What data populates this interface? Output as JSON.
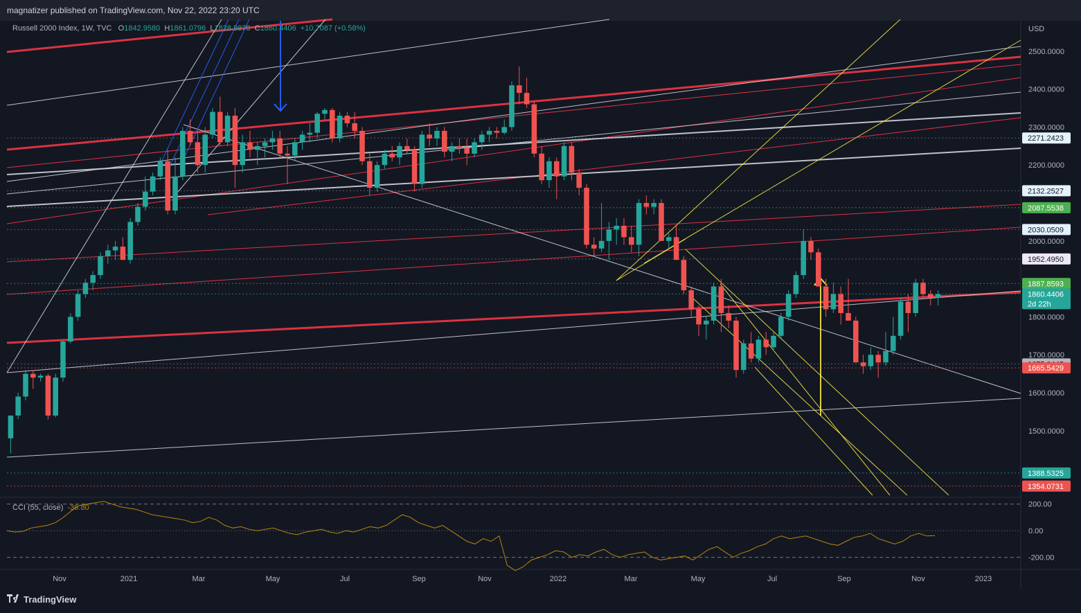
{
  "header": {
    "published": "magnatizer published on TradingView.com, Nov 22, 2022 23:20 UTC"
  },
  "legend": {
    "symbol": "Russell 2000 Index, 1W, TVC",
    "open_label": "O",
    "open": "1842.9580",
    "high_label": "H",
    "high": "1861.0796",
    "low_label": "L",
    "low": "1828.9878",
    "close_label": "C",
    "close": "1860.4406",
    "change": "+10.7087 (+0.58%)"
  },
  "cci_legend": {
    "name": "CCI (55, close)",
    "value": "-36.80"
  },
  "footer": {
    "brand": "TradingView"
  },
  "colors": {
    "background": "#131722",
    "up": "#26a69a",
    "down": "#ef5350",
    "red_line": "#f23645",
    "white_line": "#d1d4dc",
    "yellow_line": "#f5e642",
    "blue_line": "#2962ff",
    "cci": "#b8860b"
  },
  "chart_data": {
    "type": "candlestick",
    "title": "Russell 2000 Index, 1W, TVC",
    "currency": "USD",
    "y_ticks": [
      1500,
      1600,
      1700,
      1800,
      2000,
      2200,
      2300,
      2400,
      2500
    ],
    "y_tick_labels": [
      "1500.0000",
      "1600.0000",
      "1700.0000",
      "1800.0000",
      "2000.0000",
      "2200.0000",
      "2300.0000",
      "2400.0000",
      "2500.0000"
    ],
    "x_tick_labels": [
      "Nov",
      "2021",
      "Mar",
      "May",
      "Jul",
      "Sep",
      "Nov",
      "2022",
      "Mar",
      "May",
      "Jul",
      "Sep",
      "Nov",
      "2023"
    ],
    "price_labels": [
      {
        "value": 2271.2423,
        "text": "2271.2423",
        "style": "light"
      },
      {
        "value": 2132.2527,
        "text": "2132.2527",
        "style": "light"
      },
      {
        "value": 2087.5538,
        "text": "2087.5538",
        "style": "green"
      },
      {
        "value": 2030.0509,
        "text": "2030.0509",
        "style": "light"
      },
      {
        "value": 1952.495,
        "text": "1952.4950",
        "style": "lavender"
      },
      {
        "value": 1887.8593,
        "text": "1887.8593",
        "style": "green"
      },
      {
        "value": 1860.4406,
        "text": "1860.4406",
        "style": "teal",
        "extra": "2d 22h"
      },
      {
        "value": 1675.9445,
        "text": "1675.9445",
        "style": "gray"
      },
      {
        "value": 1665.5429,
        "text": "1665.5429",
        "style": "red"
      },
      {
        "value": 1388.5325,
        "text": "1388.5325",
        "style": "teal"
      },
      {
        "value": 1354.0731,
        "text": "1354.0731",
        "style": "red"
      }
    ],
    "candles": [
      [
        1480,
        1540,
        1440,
        1540
      ],
      [
        1540,
        1600,
        1530,
        1590
      ],
      [
        1590,
        1660,
        1580,
        1650
      ],
      [
        1650,
        1660,
        1610,
        1640
      ],
      [
        1640,
        1650,
        1630,
        1645
      ],
      [
        1645,
        1650,
        1530,
        1540
      ],
      [
        1540,
        1650,
        1535,
        1640
      ],
      [
        1640,
        1740,
        1630,
        1735
      ],
      [
        1735,
        1810,
        1730,
        1800
      ],
      [
        1800,
        1870,
        1790,
        1860
      ],
      [
        1860,
        1900,
        1850,
        1890
      ],
      [
        1890,
        1920,
        1870,
        1910
      ],
      [
        1910,
        1970,
        1900,
        1960
      ],
      [
        1960,
        1990,
        1940,
        1975
      ],
      [
        1975,
        2000,
        1950,
        1985
      ],
      [
        1985,
        2010,
        1960,
        1950
      ],
      [
        1950,
        2060,
        1940,
        2050
      ],
      [
        2050,
        2100,
        2040,
        2090
      ],
      [
        2090,
        2170,
        2080,
        2130
      ],
      [
        2130,
        2180,
        2120,
        2170
      ],
      [
        2170,
        2220,
        2160,
        2210
      ],
      [
        2210,
        2240,
        2070,
        2080
      ],
      [
        2080,
        2220,
        2070,
        2170
      ],
      [
        2170,
        2300,
        2160,
        2290
      ],
      [
        2290,
        2320,
        2250,
        2260
      ],
      [
        2260,
        2290,
        2180,
        2200
      ],
      [
        2200,
        2300,
        2180,
        2280
      ],
      [
        2280,
        2350,
        2270,
        2340
      ],
      [
        2340,
        2380,
        2250,
        2260
      ],
      [
        2260,
        2340,
        2250,
        2330
      ],
      [
        2330,
        2350,
        2140,
        2200
      ],
      [
        2200,
        2280,
        2180,
        2260
      ],
      [
        2260,
        2290,
        2220,
        2240
      ],
      [
        2240,
        2260,
        2200,
        2250
      ],
      [
        2250,
        2270,
        2220,
        2260
      ],
      [
        2260,
        2290,
        2240,
        2270
      ],
      [
        2270,
        2290,
        2220,
        2230
      ],
      [
        2230,
        2250,
        2150,
        2225
      ],
      [
        2225,
        2270,
        2210,
        2260
      ],
      [
        2260,
        2290,
        2240,
        2280
      ],
      [
        2280,
        2310,
        2260,
        2285
      ],
      [
        2285,
        2340,
        2270,
        2335
      ],
      [
        2335,
        2350,
        2320,
        2345
      ],
      [
        2345,
        2350,
        2260,
        2270
      ],
      [
        2270,
        2340,
        2260,
        2330
      ],
      [
        2330,
        2340,
        2300,
        2310
      ],
      [
        2310,
        2340,
        2270,
        2290
      ],
      [
        2290,
        2300,
        2200,
        2210
      ],
      [
        2210,
        2230,
        2120,
        2140
      ],
      [
        2140,
        2210,
        2130,
        2200
      ],
      [
        2200,
        2240,
        2190,
        2230
      ],
      [
        2230,
        2250,
        2210,
        2220
      ],
      [
        2220,
        2260,
        2200,
        2250
      ],
      [
        2250,
        2270,
        2230,
        2240
      ],
      [
        2240,
        2250,
        2130,
        2150
      ],
      [
        2150,
        2290,
        2140,
        2280
      ],
      [
        2280,
        2310,
        2250,
        2270
      ],
      [
        2270,
        2300,
        2250,
        2290
      ],
      [
        2290,
        2300,
        2220,
        2235
      ],
      [
        2235,
        2260,
        2210,
        2250
      ],
      [
        2250,
        2270,
        2230,
        2245
      ],
      [
        2245,
        2270,
        2200,
        2230
      ],
      [
        2230,
        2270,
        2220,
        2260
      ],
      [
        2260,
        2290,
        2240,
        2280
      ],
      [
        2280,
        2300,
        2260,
        2290
      ],
      [
        2290,
        2300,
        2270,
        2285
      ],
      [
        2285,
        2320,
        2280,
        2300
      ],
      [
        2300,
        2420,
        2290,
        2410
      ],
      [
        2410,
        2460,
        2360,
        2390
      ],
      [
        2390,
        2430,
        2350,
        2360
      ],
      [
        2360,
        2370,
        2220,
        2230
      ],
      [
        2230,
        2250,
        2150,
        2160
      ],
      [
        2160,
        2220,
        2140,
        2210
      ],
      [
        2210,
        2220,
        2110,
        2170
      ],
      [
        2170,
        2260,
        2160,
        2250
      ],
      [
        2250,
        2260,
        2160,
        2180
      ],
      [
        2180,
        2190,
        2120,
        2140
      ],
      [
        2140,
        2150,
        1980,
        1990
      ],
      [
        1990,
        2010,
        1960,
        1980
      ],
      [
        1980,
        2100,
        1970,
        2000
      ],
      [
        2000,
        2050,
        1950,
        2030
      ],
      [
        2030,
        2060,
        1990,
        2040
      ],
      [
        2040,
        2060,
        1990,
        2010
      ],
      [
        2010,
        2040,
        1970,
        1990
      ],
      [
        1990,
        2110,
        1960,
        2100
      ],
      [
        2100,
        2120,
        2070,
        2090
      ],
      [
        2090,
        2110,
        2070,
        2100
      ],
      [
        2100,
        2110,
        2000,
        2000
      ],
      [
        2000,
        2020,
        1980,
        2010
      ],
      [
        2010,
        2040,
        1960,
        1950
      ],
      [
        1950,
        1960,
        1860,
        1870
      ],
      [
        1870,
        1880,
        1800,
        1820
      ],
      [
        1820,
        1830,
        1750,
        1780
      ],
      [
        1780,
        1800,
        1740,
        1790
      ],
      [
        1790,
        1890,
        1780,
        1880
      ],
      [
        1880,
        1900,
        1760,
        1810
      ],
      [
        1810,
        1830,
        1770,
        1790
      ],
      [
        1790,
        1800,
        1640,
        1660
      ],
      [
        1660,
        1740,
        1650,
        1730
      ],
      [
        1730,
        1760,
        1680,
        1690
      ],
      [
        1690,
        1750,
        1680,
        1740
      ],
      [
        1740,
        1760,
        1700,
        1720
      ],
      [
        1720,
        1760,
        1710,
        1750
      ],
      [
        1750,
        1810,
        1740,
        1800
      ],
      [
        1800,
        1870,
        1790,
        1860
      ],
      [
        1860,
        1920,
        1850,
        1910
      ],
      [
        1910,
        2030,
        1900,
        2000
      ],
      [
        2000,
        2010,
        1950,
        1970
      ],
      [
        1970,
        1980,
        1890,
        1880
      ],
      [
        1880,
        1900,
        1800,
        1820
      ],
      [
        1820,
        1890,
        1810,
        1860
      ],
      [
        1860,
        1880,
        1780,
        1810
      ],
      [
        1810,
        1900,
        1800,
        1790
      ],
      [
        1790,
        1800,
        1680,
        1680
      ],
      [
        1680,
        1700,
        1650,
        1670
      ],
      [
        1670,
        1720,
        1660,
        1700
      ],
      [
        1700,
        1710,
        1640,
        1680
      ],
      [
        1680,
        1760,
        1670,
        1710
      ],
      [
        1710,
        1800,
        1700,
        1750
      ],
      [
        1750,
        1850,
        1740,
        1840
      ],
      [
        1840,
        1860,
        1760,
        1810
      ],
      [
        1810,
        1900,
        1800,
        1890
      ],
      [
        1890,
        1900,
        1850,
        1860
      ],
      [
        1860,
        1870,
        1830,
        1850
      ],
      [
        1850,
        1870,
        1830,
        1860
      ]
    ],
    "ylim": [
      1330,
      2580
    ],
    "cci": {
      "name": "CCI (55, close)",
      "last": -36.8,
      "levels": [
        200,
        0,
        -200
      ],
      "level_labels": [
        "200.00",
        "0.00",
        "-200.00"
      ],
      "values": [
        0,
        -10,
        -5,
        20,
        30,
        40,
        60,
        100,
        150,
        190,
        200,
        210,
        220,
        200,
        180,
        170,
        160,
        140,
        120,
        110,
        100,
        90,
        80,
        60,
        70,
        100,
        80,
        40,
        20,
        30,
        10,
        0,
        10,
        20,
        0,
        -20,
        -30,
        -10,
        0,
        10,
        -10,
        -20,
        0,
        -10,
        10,
        30,
        20,
        40,
        80,
        120,
        100,
        60,
        40,
        20,
        40,
        0,
        -40,
        -80,
        -100,
        -60,
        -80,
        -40,
        -260,
        -300,
        -270,
        -220,
        -200,
        -180,
        -150,
        -160,
        -200,
        -180,
        -190,
        -160,
        -140,
        -180,
        -200,
        -180,
        -170,
        -160,
        -200,
        -220,
        -210,
        -200,
        -190,
        -220,
        -180,
        -140,
        -120,
        -160,
        -200,
        -170,
        -150,
        -120,
        -100,
        -60,
        -40,
        -60,
        -50,
        -40,
        -60,
        -80,
        -100,
        -110,
        -80,
        -50,
        -40,
        -20,
        -60,
        -80,
        -100,
        -80,
        -40,
        -20,
        -40,
        -36.8
      ]
    },
    "xlabel": "",
    "ylabel": ""
  }
}
